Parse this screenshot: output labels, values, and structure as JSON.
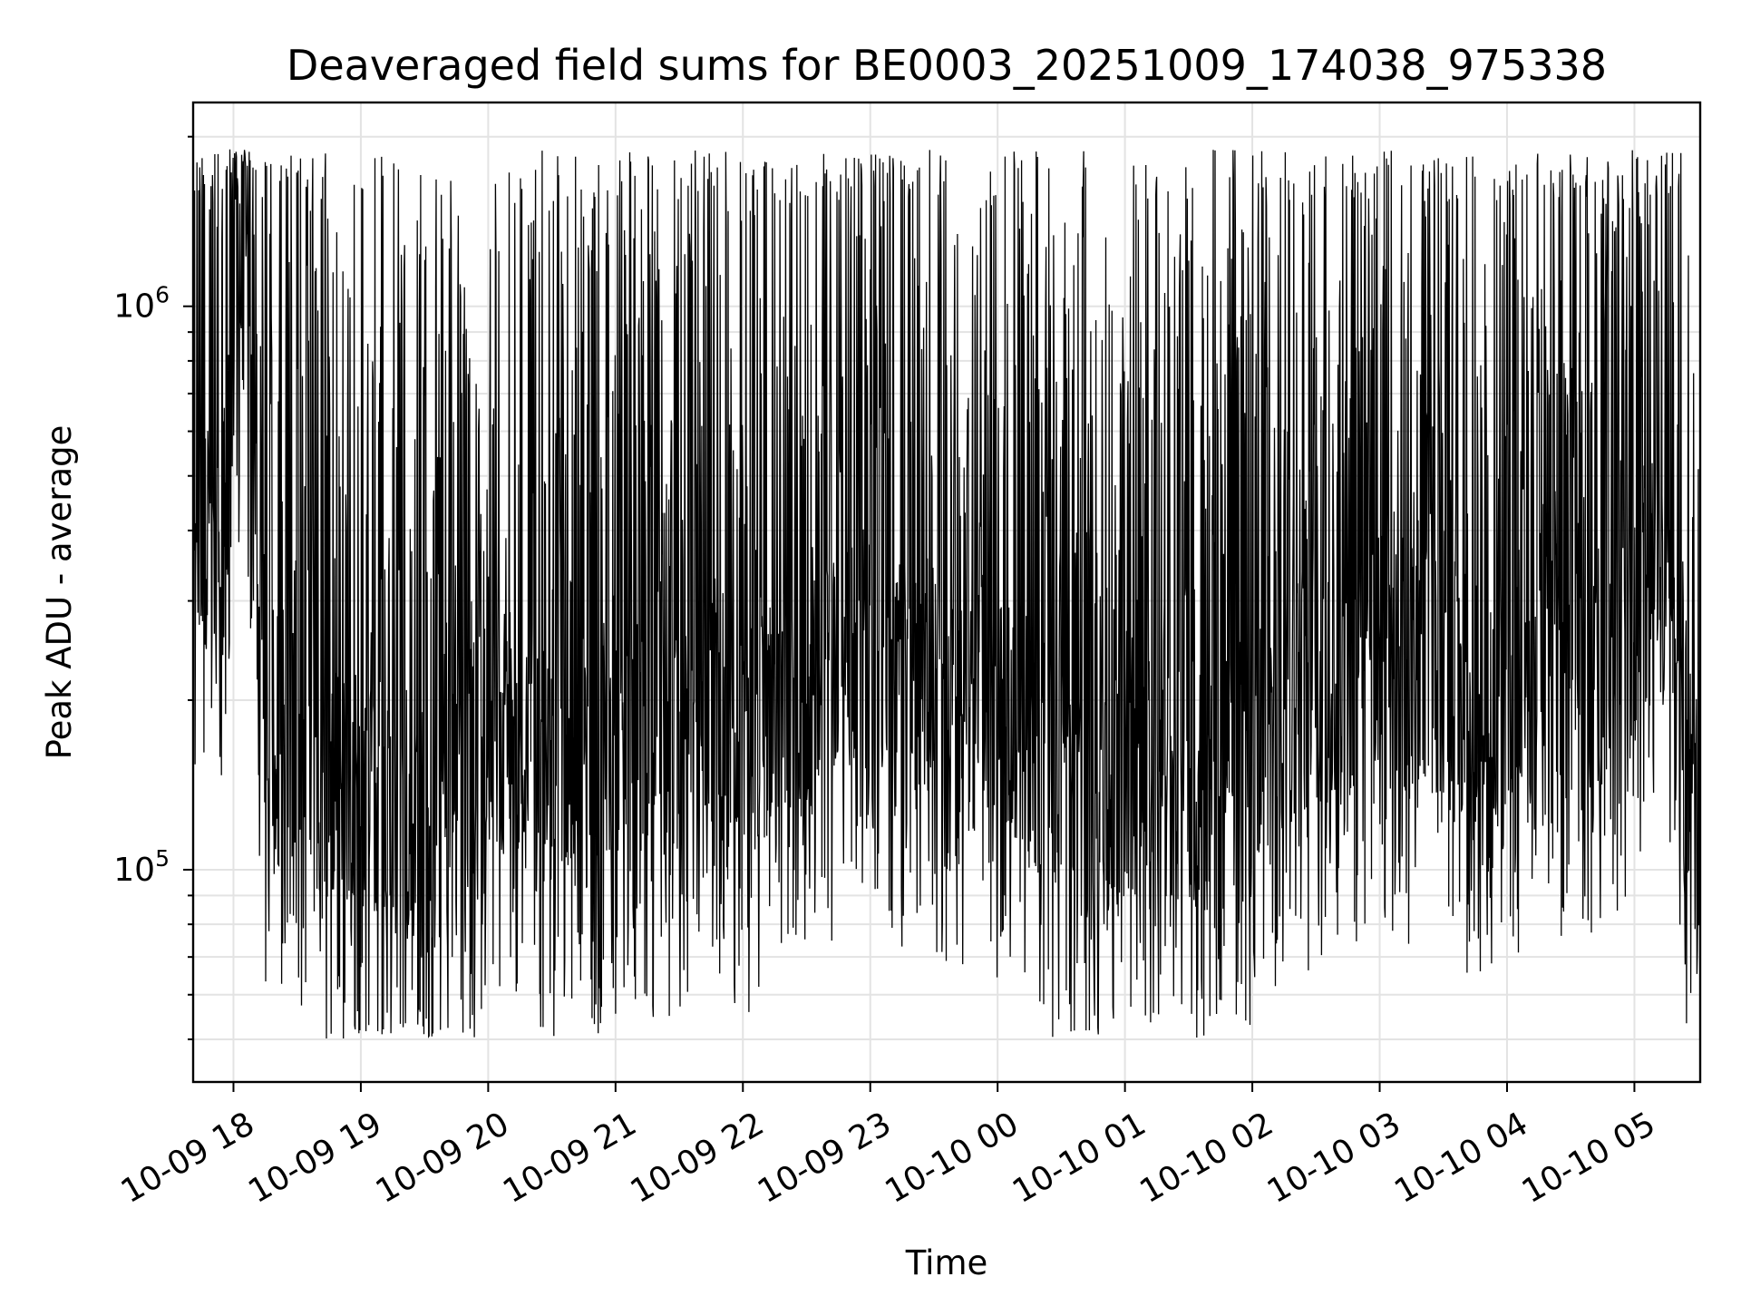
{
  "chart_data": {
    "type": "line",
    "title": "Deaveraged field sums for BE0003_20251009_174038_975338",
    "xlabel": "Time",
    "ylabel": "Peak ADU - average",
    "y_scale": "log",
    "x_range": [
      "2025-10-09 17:41",
      "2025-10-10 05:31"
    ],
    "ylim": [
      42000,
      2300000
    ],
    "x_tick_labels": [
      "10-09 18",
      "10-09 19",
      "10-09 20",
      "10-09 21",
      "10-09 22",
      "10-09 23",
      "10-10 00",
      "10-10 01",
      "10-10 02",
      "10-10 03",
      "10-10 04",
      "10-10 05"
    ],
    "y_tick_labels": [
      {
        "value": 100000,
        "base": "10",
        "exponent": "5"
      },
      {
        "value": 1000000,
        "base": "10",
        "exponent": "6"
      }
    ],
    "grid": true,
    "line_color": "#000000",
    "series": [
      {
        "x": [
          "2025-10-09 17:41",
          "2025-10-09 17:55",
          "2025-10-09 18:05",
          "2025-10-09 18:15",
          "2025-10-09 18:30",
          "2025-10-09 18:45",
          "2025-10-09 19:00",
          "2025-10-09 19:15",
          "2025-10-09 19:30",
          "2025-10-09 19:45",
          "2025-10-09 20:00",
          "2025-10-09 20:15",
          "2025-10-09 20:30",
          "2025-10-09 20:45",
          "2025-10-09 21:00",
          "2025-10-09 21:15",
          "2025-10-09 21:30",
          "2025-10-09 21:45",
          "2025-10-09 22:00",
          "2025-10-09 22:15",
          "2025-10-09 22:30",
          "2025-10-09 22:45",
          "2025-10-09 23:00",
          "2025-10-09 23:15",
          "2025-10-09 23:30",
          "2025-10-09 23:45",
          "2025-10-10 00:00",
          "2025-10-10 00:15",
          "2025-10-10 00:30",
          "2025-10-10 00:45",
          "2025-10-10 01:00",
          "2025-10-10 01:15",
          "2025-10-10 01:30",
          "2025-10-10 01:45",
          "2025-10-10 02:00",
          "2025-10-10 02:15",
          "2025-10-10 02:30",
          "2025-10-10 02:45",
          "2025-10-10 03:00",
          "2025-10-10 03:15",
          "2025-10-10 03:30",
          "2025-10-10 03:45",
          "2025-10-10 04:00",
          "2025-10-10 04:15",
          "2025-10-10 04:30",
          "2025-10-10 04:45",
          "2025-10-10 05:00",
          "2025-10-10 05:15",
          "2025-10-10 05:31"
        ],
        "y": [
          380000,
          450000,
          1000000,
          200000,
          180000,
          150000,
          130000,
          140000,
          120000,
          125000,
          180000,
          170000,
          160000,
          155000,
          170000,
          160000,
          180000,
          200000,
          170000,
          200000,
          220000,
          240000,
          250000,
          230000,
          220000,
          210000,
          200000,
          180000,
          150000,
          130000,
          140000,
          160000,
          150000,
          140000,
          170000,
          200000,
          210000,
          220000,
          250000,
          230000,
          220000,
          200000,
          210000,
          250000,
          220000,
          230000,
          300000,
          400000,
          90000
        ]
      }
    ]
  }
}
